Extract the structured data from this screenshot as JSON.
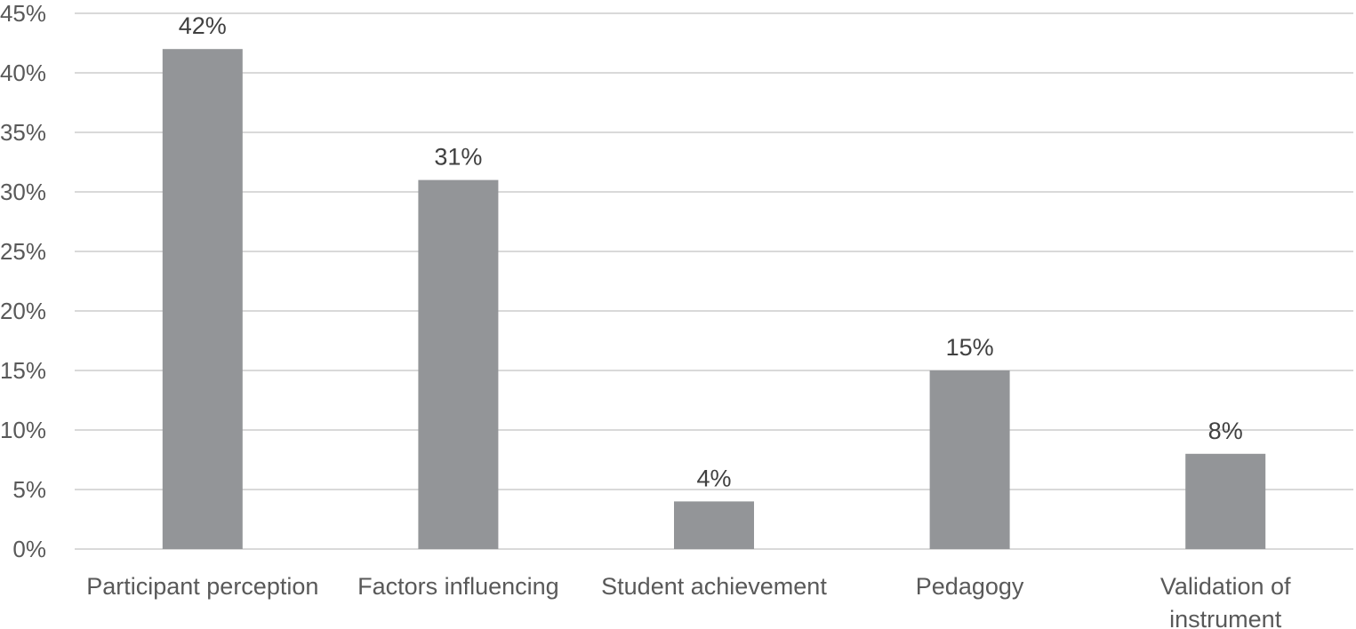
{
  "chart_data": {
    "type": "bar",
    "title": "",
    "xlabel": "",
    "ylabel": "",
    "categories": [
      [
        "Participant perception"
      ],
      [
        "Factors influencing"
      ],
      [
        "Student achievement"
      ],
      [
        "Pedagogy"
      ],
      [
        "Validation of",
        "instrument"
      ]
    ],
    "values": [
      42,
      31,
      4,
      15,
      8
    ],
    "data_labels": [
      "42%",
      "31%",
      "4%",
      "15%",
      "8%"
    ],
    "ylim": [
      0,
      45
    ],
    "yticks": [
      0,
      5,
      10,
      15,
      20,
      25,
      30,
      35,
      40,
      45
    ],
    "ytick_labels": [
      "0%",
      "5%",
      "10%",
      "15%",
      "20%",
      "25%",
      "30%",
      "35%",
      "40%",
      "45%"
    ],
    "grid": true,
    "legend": "none",
    "colors": {
      "bar": "#939598",
      "grid": "#d9d9d9",
      "text": "#595959"
    }
  }
}
